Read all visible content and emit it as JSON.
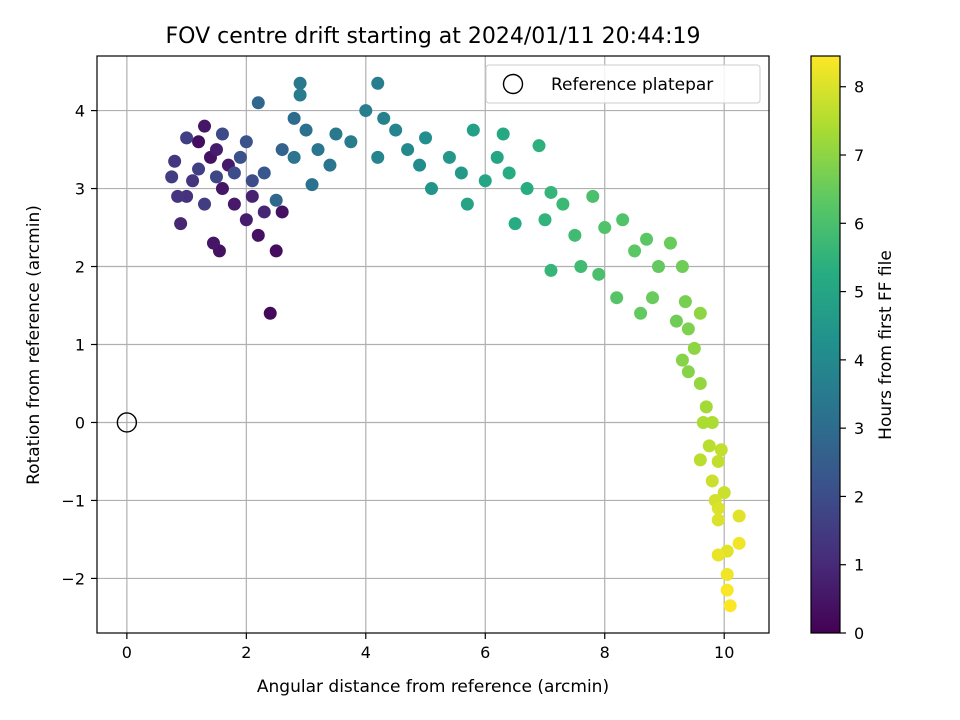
{
  "chart_data": {
    "type": "scatter",
    "title": "FOV centre drift starting at 2024/01/11 20:44:19",
    "xlabel": "Angular distance from reference (arcmin)",
    "ylabel": "Rotation from reference (arcmin)",
    "xlim": [
      -0.5,
      10.75
    ],
    "ylim": [
      -2.7,
      4.7
    ],
    "xticks": [
      0,
      2,
      4,
      6,
      8,
      10
    ],
    "yticks": [
      -2,
      -1,
      0,
      1,
      2,
      3,
      4
    ],
    "grid": true,
    "legend": {
      "position": "top-right",
      "entries": [
        "Reference platepar"
      ]
    },
    "reference_point": {
      "x": 0,
      "y": 0,
      "label": "Reference platepar"
    },
    "colorbar": {
      "label": "Hours from first FF file",
      "colormap": "viridis",
      "range": [
        0,
        8.45
      ],
      "ticks": [
        0,
        1,
        2,
        3,
        4,
        5,
        6,
        7,
        8
      ]
    },
    "points": {
      "columns": [
        "x",
        "y",
        "hours"
      ],
      "values": [
        [
          1.2,
          3.6,
          0.3
        ],
        [
          1.4,
          3.4,
          0.4
        ],
        [
          1.6,
          3.0,
          0.5
        ],
        [
          1.8,
          2.8,
          0.6
        ],
        [
          2.0,
          2.6,
          0.7
        ],
        [
          1.3,
          3.8,
          0.5
        ],
        [
          1.7,
          3.3,
          0.6
        ],
        [
          2.1,
          2.9,
          0.8
        ],
        [
          2.3,
          2.7,
          0.9
        ],
        [
          1.5,
          3.5,
          0.7
        ],
        [
          0.9,
          2.55,
          0.9
        ],
        [
          1.55,
          2.2,
          0.4
        ],
        [
          1.45,
          2.3,
          0.5
        ],
        [
          2.2,
          2.4,
          0.4
        ],
        [
          2.5,
          2.2,
          0.3
        ],
        [
          2.6,
          2.7,
          0.4
        ],
        [
          2.4,
          1.4,
          0.2
        ],
        [
          1.0,
          2.9,
          1.2
        ],
        [
          1.1,
          3.1,
          1.3
        ],
        [
          0.8,
          3.35,
          1.4
        ],
        [
          1.3,
          2.8,
          1.5
        ],
        [
          1.0,
          3.65,
          1.6
        ],
        [
          1.2,
          3.25,
          1.6
        ],
        [
          1.5,
          3.15,
          1.8
        ],
        [
          0.75,
          3.15,
          1.5
        ],
        [
          0.85,
          2.9,
          1.3
        ],
        [
          1.6,
          3.7,
          1.9
        ],
        [
          1.9,
          3.4,
          2.1
        ],
        [
          2.0,
          3.6,
          2.2
        ],
        [
          2.3,
          3.2,
          2.3
        ],
        [
          2.1,
          3.1,
          2.0
        ],
        [
          1.8,
          3.2,
          2.0
        ],
        [
          2.2,
          4.1,
          2.8
        ],
        [
          2.6,
          3.5,
          2.7
        ],
        [
          2.5,
          2.85,
          2.8
        ],
        [
          2.8,
          3.9,
          3.0
        ],
        [
          3.0,
          3.75,
          3.2
        ],
        [
          3.2,
          3.5,
          3.3
        ],
        [
          3.5,
          3.7,
          3.4
        ],
        [
          3.1,
          3.05,
          3.2
        ],
        [
          2.8,
          3.4,
          3.3
        ],
        [
          3.4,
          3.3,
          3.3
        ],
        [
          2.9,
          4.35,
          3.4
        ],
        [
          2.9,
          4.2,
          3.5
        ],
        [
          3.75,
          3.6,
          3.5
        ],
        [
          4.0,
          4.0,
          3.6
        ],
        [
          4.2,
          4.35,
          3.6
        ],
        [
          4.3,
          3.9,
          3.7
        ],
        [
          4.5,
          3.75,
          3.8
        ],
        [
          4.2,
          3.4,
          3.8
        ],
        [
          4.7,
          3.5,
          4.0
        ],
        [
          4.9,
          3.3,
          4.1
        ],
        [
          5.0,
          3.65,
          4.2
        ],
        [
          5.1,
          3.0,
          4.4
        ],
        [
          5.4,
          3.4,
          4.5
        ],
        [
          5.6,
          3.2,
          4.6
        ],
        [
          5.8,
          3.75,
          4.8
        ],
        [
          5.7,
          2.8,
          4.9
        ],
        [
          6.0,
          3.1,
          5.0
        ],
        [
          6.2,
          3.4,
          5.0
        ],
        [
          6.3,
          3.7,
          5.1
        ],
        [
          6.4,
          3.2,
          5.2
        ],
        [
          6.5,
          2.55,
          5.2
        ],
        [
          6.7,
          3.0,
          5.3
        ],
        [
          6.9,
          3.55,
          5.4
        ],
        [
          7.0,
          2.6,
          5.5
        ],
        [
          7.1,
          2.95,
          5.6
        ],
        [
          7.1,
          1.95,
          5.6
        ],
        [
          7.3,
          2.8,
          5.7
        ],
        [
          7.5,
          2.4,
          5.8
        ],
        [
          7.6,
          2.0,
          5.8
        ],
        [
          7.8,
          2.9,
          6.0
        ],
        [
          7.9,
          1.9,
          6.0
        ],
        [
          8.0,
          2.5,
          6.1
        ],
        [
          8.3,
          2.6,
          6.1
        ],
        [
          8.2,
          1.6,
          6.2
        ],
        [
          8.5,
          2.2,
          6.3
        ],
        [
          8.7,
          2.35,
          6.3
        ],
        [
          8.9,
          2.0,
          6.4
        ],
        [
          8.6,
          1.4,
          6.4
        ],
        [
          8.8,
          1.6,
          6.5
        ],
        [
          9.1,
          2.3,
          6.5
        ],
        [
          9.2,
          1.3,
          6.6
        ],
        [
          9.3,
          2.0,
          6.6
        ],
        [
          9.35,
          1.55,
          6.7
        ],
        [
          9.4,
          1.2,
          6.8
        ],
        [
          9.3,
          0.8,
          6.9
        ],
        [
          9.4,
          0.65,
          6.9
        ],
        [
          9.5,
          0.95,
          7.0
        ],
        [
          9.6,
          1.4,
          7.0
        ],
        [
          9.6,
          0.5,
          7.1
        ],
        [
          9.7,
          0.2,
          7.3
        ],
        [
          9.65,
          0.0,
          7.4
        ],
        [
          9.8,
          0.0,
          7.4
        ],
        [
          9.6,
          -0.48,
          7.6
        ],
        [
          9.75,
          -0.3,
          7.6
        ],
        [
          9.9,
          -0.5,
          7.7
        ],
        [
          9.95,
          -0.35,
          7.7
        ],
        [
          9.8,
          -0.75,
          7.8
        ],
        [
          10.0,
          -0.9,
          7.8
        ],
        [
          9.85,
          -1.0,
          7.9
        ],
        [
          9.9,
          -1.25,
          8.0
        ],
        [
          9.9,
          -1.1,
          8.0
        ],
        [
          10.05,
          -1.65,
          8.1
        ],
        [
          10.25,
          -1.2,
          8.1
        ],
        [
          9.9,
          -1.7,
          8.2
        ],
        [
          10.25,
          -1.55,
          8.3
        ],
        [
          10.05,
          -1.95,
          8.3
        ],
        [
          10.05,
          -2.15,
          8.4
        ],
        [
          10.1,
          -2.35,
          8.45
        ]
      ]
    }
  }
}
